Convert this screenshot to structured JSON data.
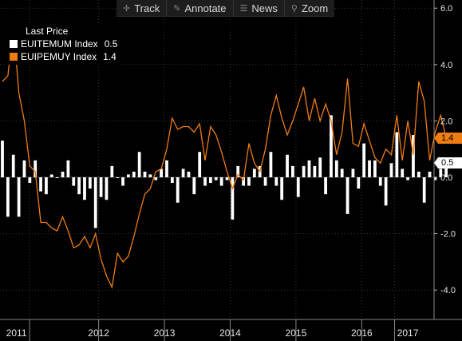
{
  "toolbar": {
    "items": [
      {
        "label": "Track",
        "icon": "crosshair-icon"
      },
      {
        "label": "Annotate",
        "icon": "pencil-icon"
      },
      {
        "label": "News",
        "icon": "news-icon"
      },
      {
        "label": "Zoom",
        "icon": "magnifier-icon"
      }
    ]
  },
  "legend": {
    "title": "Last Price",
    "entries": [
      {
        "name": "EUITEMUM Index",
        "value": "0.5",
        "color": "#ffffff"
      },
      {
        "name": "EUIPEMUY Index",
        "value": "1.4",
        "color": "#f07c12"
      }
    ]
  },
  "badges": {
    "orange": "1.4",
    "white": "0.5"
  },
  "chart_data": {
    "type": "bar+line",
    "ylim": [
      -4.9,
      6.3
    ],
    "yticks": [
      -4.0,
      -2.0,
      0.0,
      2.0,
      4.0,
      6.0
    ],
    "ytick_labels": [
      "-4.0",
      "-2.0",
      "0.0",
      "2.0",
      "4.0",
      "6.0"
    ],
    "xlim": [
      2011.0,
      2017.6
    ],
    "year_labels": [
      "2011",
      "2012",
      "2013",
      "2014",
      "2015",
      "2016",
      "2017"
    ],
    "year_label_positions": [
      2011.25,
      2012.5,
      2013.5,
      2014.5,
      2015.5,
      2016.5,
      2017.2
    ],
    "year_boundaries": [
      2011.45,
      2012.5,
      2013.5,
      2014.5,
      2015.5,
      2016.5,
      2017.0
    ],
    "gridlines": true,
    "series": [
      {
        "name": "EUITEMUM Index",
        "type": "bar",
        "color": "#ffffff",
        "start": 2011.0,
        "step": 0.0833,
        "values": [
          1.3,
          -1.4,
          0.8,
          -1.4,
          0.6,
          -0.2,
          0.6,
          -0.5,
          -0.6,
          0.1,
          0.0,
          0.2,
          0.6,
          -0.3,
          -0.6,
          -0.8,
          -0.4,
          -1.8,
          -0.7,
          -0.8,
          0.4,
          0.0,
          -0.3,
          0.1,
          0.2,
          0.9,
          0.2,
          0.1,
          -0.1,
          0.3,
          0.6,
          -0.2,
          -0.9,
          0.3,
          0.2,
          -0.6,
          0.9,
          -0.3,
          -0.2,
          -0.1,
          -0.3,
          -0.1,
          -1.5,
          0.4,
          -0.3,
          -0.3,
          0.3,
          0.4,
          -0.3,
          0.9,
          -0.3,
          -0.8,
          0.8,
          0.4,
          -0.7,
          0.4,
          0.6,
          0.4,
          0.7,
          -0.6,
          2.2,
          0.6,
          0.3,
          -1.3,
          0.3,
          -0.4,
          1.2,
          0.6,
          0.6,
          -0.3,
          -1.0,
          0.5,
          1.6,
          0.3,
          -0.1,
          1.5,
          0.2,
          -0.9,
          0.2,
          -0.1,
          0.3,
          0.5
        ]
      },
      {
        "name": "EUIPEMUY Index",
        "type": "line",
        "color": "#f07c12",
        "start": 2011.0,
        "step": 0.0833,
        "values": [
          3.4,
          3.6,
          5.4,
          3.0,
          2.0,
          0.4,
          0.2,
          -1.6,
          -1.6,
          -1.8,
          -1.9,
          -1.4,
          -1.9,
          -2.5,
          -2.4,
          -2.1,
          -2.5,
          -2.0,
          -2.9,
          -3.5,
          -3.9,
          -2.7,
          -3.0,
          -2.8,
          -2.1,
          -1.3,
          -0.6,
          -0.4,
          0.2,
          0.3,
          1.0,
          2.1,
          1.7,
          1.8,
          1.8,
          1.6,
          1.9,
          0.6,
          1.8,
          1.5,
          0.9,
          0.2,
          -0.4,
          0.1,
          -0.1,
          1.2,
          0.5,
          0.2,
          1.0,
          2.2,
          2.9,
          2.1,
          1.5,
          2.0,
          2.6,
          3.2,
          2.0,
          2.8,
          2.0,
          2.6,
          2.0,
          0.8,
          1.6,
          3.5,
          1.2,
          1.1,
          1.9,
          1.3,
          0.7,
          0.5,
          1.0,
          0.8,
          2.2,
          0.6,
          2.0,
          0.8,
          3.4,
          2.7,
          0.6,
          1.6,
          2.2,
          1.4
        ]
      }
    ]
  }
}
